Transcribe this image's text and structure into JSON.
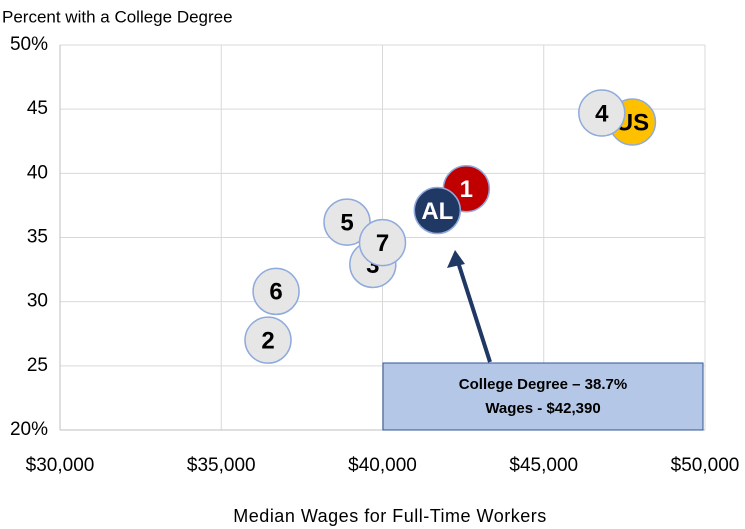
{
  "chart_data": {
    "type": "scatter",
    "y_axis_label": "Percent with a College Degree",
    "x_axis_label": "Median Wages for Full-Time Workers",
    "xlim": [
      30000,
      50000
    ],
    "xticks": [
      {
        "value": 30000,
        "label": "$30,000"
      },
      {
        "value": 35000,
        "label": "$35,000"
      },
      {
        "value": 40000,
        "label": "$40,000"
      },
      {
        "value": 45000,
        "label": "$45,000"
      },
      {
        "value": 50000,
        "label": "$50,000"
      }
    ],
    "ylim": [
      20,
      50
    ],
    "yticks": [
      {
        "value": 20,
        "label": "20%"
      },
      25,
      30,
      35,
      40,
      45,
      {
        "value": 50,
        "label": "50%"
      }
    ],
    "grid": true,
    "points": [
      {
        "label": "US",
        "x": 47750,
        "y": 44.0,
        "color": "#ffc000"
      },
      {
        "label": "4",
        "x": 46800,
        "y": 44.7,
        "color": "#e6e6e6"
      },
      {
        "label": "1",
        "x": 42600,
        "y": 38.8,
        "color": "#c00000"
      },
      {
        "label": "AL",
        "x": 41700,
        "y": 37.1,
        "color": "#203864"
      },
      {
        "label": "5",
        "x": 38900,
        "y": 36.2,
        "color": "#e6e6e6"
      },
      {
        "label": "3",
        "x": 39700,
        "y": 32.9,
        "color": "#e6e6e6"
      },
      {
        "label": "7",
        "x": 40000,
        "y": 34.6,
        "color": "#e6e6e6"
      },
      {
        "label": "6",
        "x": 36700,
        "y": 30.8,
        "color": "#e6e6e6"
      },
      {
        "label": "2",
        "x": 36450,
        "y": 27.0,
        "color": "#e6e6e6"
      }
    ],
    "annotation": [
      "College Degree – 38.7%",
      "Wages - $42,390"
    ]
  }
}
